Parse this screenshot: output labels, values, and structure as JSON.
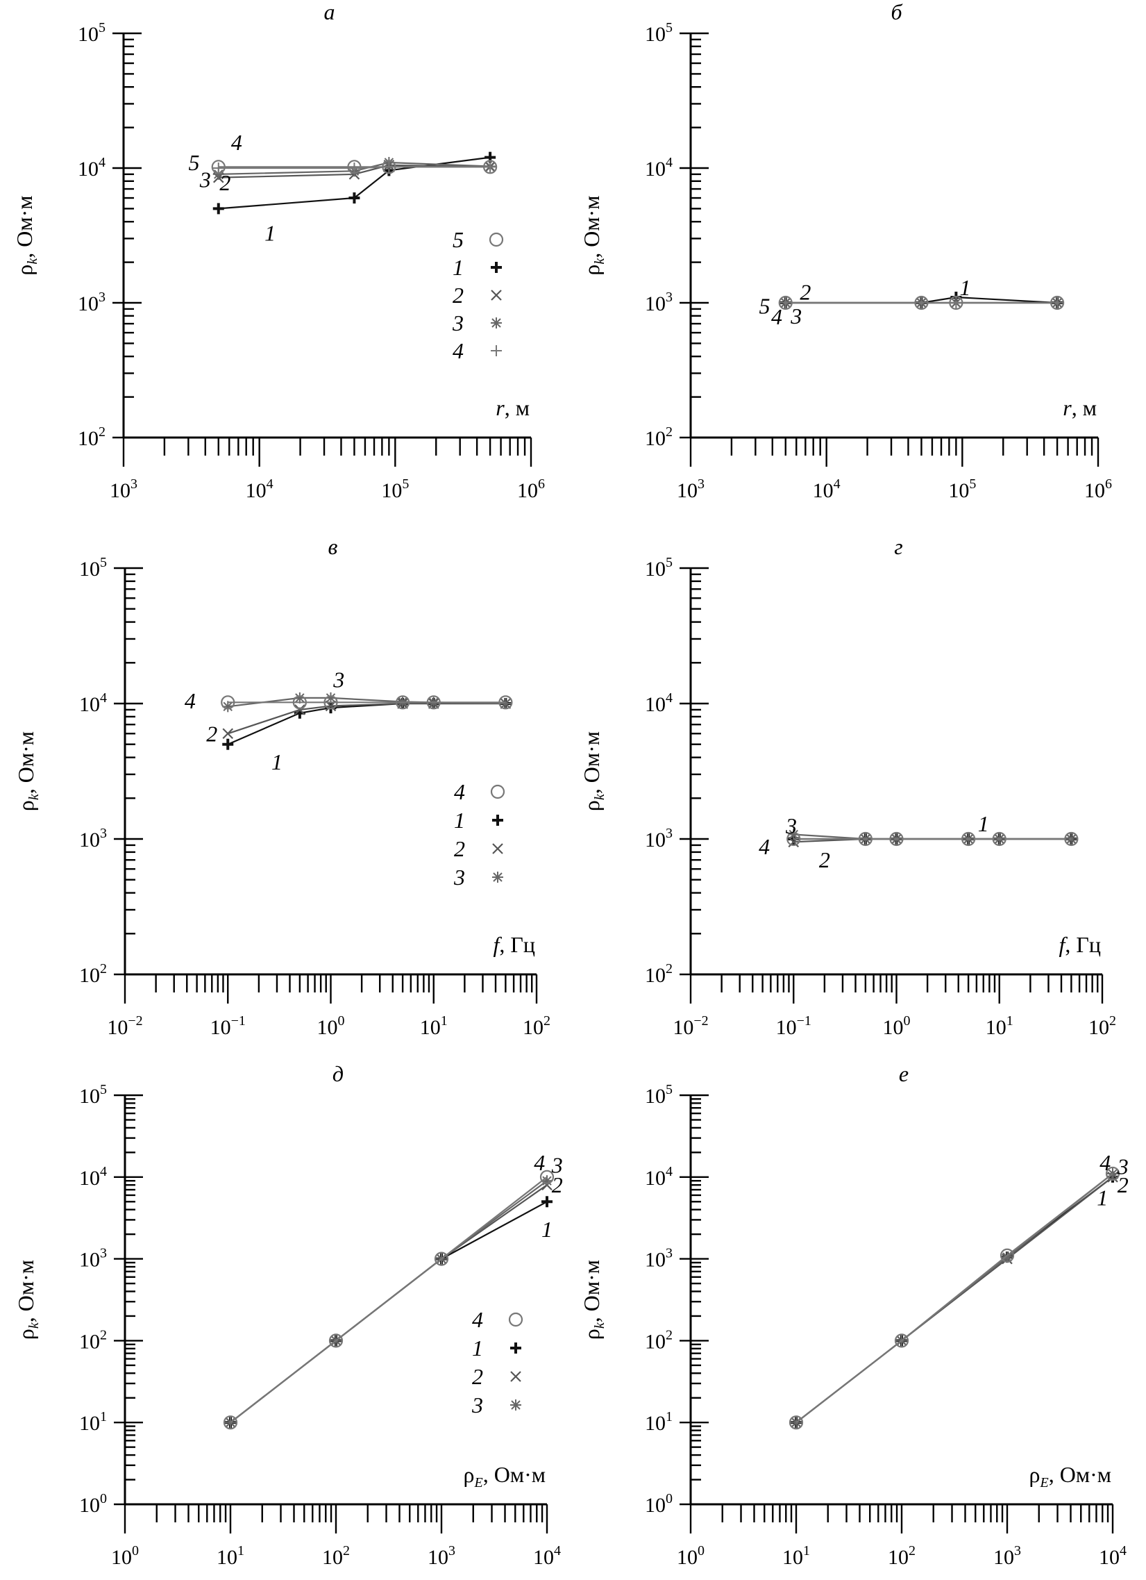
{
  "chart_data": [
    {
      "type": "line",
      "panel_label": "а",
      "x_scale": "log",
      "y_scale": "log",
      "xlim": [
        1000,
        1000000
      ],
      "ylim": [
        100,
        100000
      ],
      "xlabel": "r, м",
      "ylabel": "ρk, Ом·м",
      "x_ticks": [
        "10^3",
        "10^4",
        "10^5",
        "10^6"
      ],
      "y_ticks": [
        "10^2",
        "10^3",
        "10^4",
        "10^5"
      ],
      "legend_position": "right",
      "legend_order": [
        "5",
        "1",
        "2",
        "3",
        "4"
      ],
      "series": [
        {
          "name": "1",
          "marker": "bold-plus",
          "x": [
            5000,
            50000,
            90000,
            500000
          ],
          "y": [
            5000,
            6000,
            9600,
            12000
          ]
        },
        {
          "name": "2",
          "marker": "x",
          "x": [
            5000,
            50000,
            90000,
            500000
          ],
          "y": [
            8500,
            9000,
            10500,
            10200
          ]
        },
        {
          "name": "3",
          "marker": "asterisk",
          "x": [
            5000,
            50000,
            90000,
            500000
          ],
          "y": [
            9000,
            9500,
            11000,
            10300
          ]
        },
        {
          "name": "4",
          "marker": "plus",
          "x": [
            5000,
            50000,
            90000,
            500000
          ],
          "y": [
            10000,
            10000,
            10200,
            10200
          ]
        },
        {
          "name": "5",
          "marker": "circle",
          "x": [
            5000,
            50000,
            90000,
            500000
          ],
          "y": [
            10200,
            10200,
            10200,
            10200
          ]
        }
      ],
      "annotations": [
        {
          "text": "5",
          "x": 3300,
          "y": 11000
        },
        {
          "text": "4",
          "x": 6800,
          "y": 15500
        },
        {
          "text": "3",
          "x": 4000,
          "y": 8200
        },
        {
          "text": "2",
          "x": 5600,
          "y": 7800
        },
        {
          "text": "1",
          "x": 12000,
          "y": 3300
        }
      ]
    },
    {
      "type": "line",
      "panel_label": "б",
      "x_scale": "log",
      "y_scale": "log",
      "xlim": [
        1000,
        1000000
      ],
      "ylim": [
        100,
        100000
      ],
      "xlabel": "r, м",
      "ylabel": "ρk, Ом·м",
      "x_ticks": [
        "10^3",
        "10^4",
        "10^5",
        "10^6"
      ],
      "y_ticks": [
        "10^2",
        "10^3",
        "10^4",
        "10^5"
      ],
      "series": [
        {
          "name": "1",
          "marker": "bold-plus",
          "x": [
            5000,
            50000,
            90000,
            500000
          ],
          "y": [
            1000,
            1000,
            1100,
            1000
          ]
        },
        {
          "name": "2",
          "marker": "x",
          "x": [
            5000,
            50000,
            90000,
            500000
          ],
          "y": [
            1000,
            1000,
            1000,
            1000
          ]
        },
        {
          "name": "3",
          "marker": "asterisk",
          "x": [
            5000,
            50000,
            90000,
            500000
          ],
          "y": [
            1000,
            1000,
            1000,
            1000
          ]
        },
        {
          "name": "4",
          "marker": "plus",
          "x": [
            5000,
            50000,
            90000,
            500000
          ],
          "y": [
            1000,
            1000,
            1000,
            1000
          ]
        },
        {
          "name": "5",
          "marker": "circle",
          "x": [
            5000,
            50000,
            90000,
            500000
          ],
          "y": [
            1000,
            1000,
            1000,
            1000
          ]
        }
      ],
      "annotations": [
        {
          "text": "1",
          "x": 105000,
          "y": 1300
        },
        {
          "text": "2",
          "x": 7000,
          "y": 1200
        },
        {
          "text": "5",
          "x": 3500,
          "y": 950
        },
        {
          "text": "4",
          "x": 4300,
          "y": 790
        },
        {
          "text": "3",
          "x": 6000,
          "y": 800
        }
      ]
    },
    {
      "type": "line",
      "panel_label": "в",
      "x_scale": "log",
      "y_scale": "log",
      "xlim": [
        0.01,
        100
      ],
      "ylim": [
        100,
        100000
      ],
      "xlabel": "f, Гц",
      "ylabel": "ρk, Ом·м",
      "x_ticks": [
        "10^−2",
        "10^−1",
        "10^0",
        "10^1",
        "10^2"
      ],
      "y_ticks": [
        "10^2",
        "10^3",
        "10^4",
        "10^5"
      ],
      "legend_position": "right",
      "legend_order": [
        "4",
        "1",
        "2",
        "3"
      ],
      "series": [
        {
          "name": "1",
          "marker": "bold-plus",
          "x": [
            0.1,
            0.5,
            1,
            5,
            10,
            50
          ],
          "y": [
            5000,
            8500,
            9300,
            10000,
            10000,
            10000
          ]
        },
        {
          "name": "2",
          "marker": "x",
          "x": [
            0.1,
            0.5,
            1,
            5,
            10,
            50
          ],
          "y": [
            6000,
            9000,
            9600,
            10000,
            10000,
            10000
          ]
        },
        {
          "name": "3",
          "marker": "asterisk",
          "x": [
            0.1,
            0.5,
            1,
            5,
            10,
            50
          ],
          "y": [
            9500,
            11000,
            11000,
            10300,
            10200,
            10000
          ]
        },
        {
          "name": "4",
          "marker": "circle",
          "x": [
            0.1,
            0.5,
            1,
            5,
            10,
            50
          ],
          "y": [
            10200,
            10200,
            10200,
            10200,
            10200,
            10200
          ]
        }
      ],
      "annotations": [
        {
          "text": "4",
          "x": 0.043,
          "y": 10500
        },
        {
          "text": "3",
          "x": 1.2,
          "y": 15000
        },
        {
          "text": "2",
          "x": 0.07,
          "y": 6000
        },
        {
          "text": "1",
          "x": 0.3,
          "y": 3700
        }
      ]
    },
    {
      "type": "line",
      "panel_label": "г",
      "x_scale": "log",
      "y_scale": "log",
      "xlim": [
        0.01,
        100
      ],
      "ylim": [
        100,
        100000
      ],
      "xlabel": "f, Гц",
      "ylabel": "ρk, Ом·м",
      "x_ticks": [
        "10^−2",
        "10^−1",
        "10^0",
        "10^1",
        "10^2"
      ],
      "y_ticks": [
        "10^2",
        "10^3",
        "10^4",
        "10^5"
      ],
      "series": [
        {
          "name": "1",
          "marker": "bold-plus",
          "x": [
            0.1,
            0.5,
            1,
            5,
            10,
            50
          ],
          "y": [
            1000,
            1000,
            1000,
            1000,
            1000,
            1000
          ]
        },
        {
          "name": "2",
          "marker": "x",
          "x": [
            0.1,
            0.5,
            1,
            5,
            10,
            50
          ],
          "y": [
            950,
            1000,
            1000,
            1000,
            1000,
            1000
          ]
        },
        {
          "name": "3",
          "marker": "asterisk",
          "x": [
            0.1,
            0.5,
            1,
            5,
            10,
            50
          ],
          "y": [
            1080,
            1000,
            1000,
            1000,
            1000,
            1000
          ]
        },
        {
          "name": "4",
          "marker": "circle",
          "x": [
            0.1,
            0.5,
            1,
            5,
            10,
            50
          ],
          "y": [
            1000,
            1000,
            1000,
            1000,
            1000,
            1000
          ]
        }
      ],
      "annotations": [
        {
          "text": "1",
          "x": 7,
          "y": 1300
        },
        {
          "text": "3",
          "x": 0.095,
          "y": 1250
        },
        {
          "text": "4",
          "x": 0.052,
          "y": 880
        },
        {
          "text": "2",
          "x": 0.2,
          "y": 700
        }
      ]
    },
    {
      "type": "line",
      "panel_label": "д",
      "x_scale": "log",
      "y_scale": "log",
      "xlim": [
        1,
        10000
      ],
      "ylim": [
        1,
        100000
      ],
      "xlabel": "ρE, Ом·м",
      "ylabel": "ρk, Ом·м",
      "x_ticks": [
        "10^0",
        "10^1",
        "10^2",
        "10^3",
        "10^4"
      ],
      "y_ticks": [
        "10^0",
        "10^1",
        "10^2",
        "10^3",
        "10^4",
        "10^5"
      ],
      "legend_position": "right",
      "legend_order": [
        "4",
        "1",
        "2",
        "3"
      ],
      "series": [
        {
          "name": "1",
          "marker": "bold-plus",
          "x": [
            10,
            100,
            1000,
            10000
          ],
          "y": [
            10,
            100,
            1000,
            5000
          ]
        },
        {
          "name": "2",
          "marker": "x",
          "x": [
            10,
            100,
            1000,
            10000
          ],
          "y": [
            10,
            100,
            1000,
            8000
          ]
        },
        {
          "name": "3",
          "marker": "asterisk",
          "x": [
            10,
            100,
            1000,
            10000
          ],
          "y": [
            10,
            100,
            1000,
            9000
          ]
        },
        {
          "name": "4",
          "marker": "circle",
          "x": [
            10,
            100,
            1000,
            10000
          ],
          "y": [
            10,
            100,
            1000,
            10000
          ]
        }
      ],
      "annotations": [
        {
          "text": "4",
          "x": 8500,
          "y": 15000
        },
        {
          "text": "3",
          "x": 12500,
          "y": 14000
        },
        {
          "text": "2",
          "x": 12500,
          "y": 8000
        },
        {
          "text": "1",
          "x": 10000,
          "y": 2300
        }
      ]
    },
    {
      "type": "line",
      "panel_label": "е",
      "x_scale": "log",
      "y_scale": "log",
      "xlim": [
        1,
        10000
      ],
      "ylim": [
        1,
        100000
      ],
      "xlabel": "ρE, Ом·м",
      "ylabel": "ρk, Ом·м",
      "x_ticks": [
        "10^0",
        "10^1",
        "10^2",
        "10^3",
        "10^4"
      ],
      "y_ticks": [
        "10^0",
        "10^1",
        "10^2",
        "10^3",
        "10^4",
        "10^5"
      ],
      "series": [
        {
          "name": "1",
          "marker": "bold-plus",
          "x": [
            10,
            100,
            1000,
            10000
          ],
          "y": [
            10,
            100,
            1050,
            10000
          ]
        },
        {
          "name": "2",
          "marker": "x",
          "x": [
            10,
            100,
            1000,
            10000
          ],
          "y": [
            10,
            100,
            1000,
            10000
          ]
        },
        {
          "name": "3",
          "marker": "asterisk",
          "x": [
            10,
            100,
            1000,
            10000
          ],
          "y": [
            10,
            100,
            1050,
            11000
          ]
        },
        {
          "name": "4",
          "marker": "circle",
          "x": [
            10,
            100,
            1000,
            10000
          ],
          "y": [
            10,
            100,
            1100,
            11000
          ]
        }
      ],
      "annotations": [
        {
          "text": "4",
          "x": 8500,
          "y": 15000
        },
        {
          "text": "3",
          "x": 12500,
          "y": 13500
        },
        {
          "text": "2",
          "x": 12500,
          "y": 8000
        },
        {
          "text": "1",
          "x": 8000,
          "y": 5600
        }
      ]
    }
  ]
}
